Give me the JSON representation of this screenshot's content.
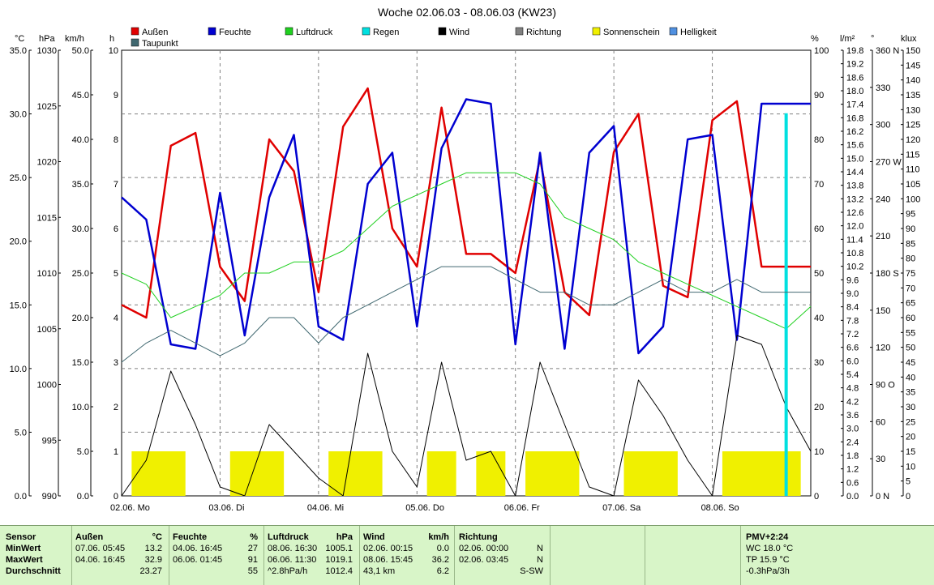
{
  "title": "Woche 02.06.03 - 08.06.03 (KW23)",
  "legend": [
    {
      "label": "Außen",
      "color": "#e00000"
    },
    {
      "label": "Feuchte",
      "color": "#0000d0"
    },
    {
      "label": "Luftdruck",
      "color": "#20d020"
    },
    {
      "label": "Regen",
      "color": "#00e0e0"
    },
    {
      "label": "Wind",
      "color": "#000000"
    },
    {
      "label": "Richtung",
      "color": "#808080"
    },
    {
      "label": "Sonnenschein",
      "color": "#f0f000"
    },
    {
      "label": "Helligkeit",
      "color": "#5090e0"
    },
    {
      "label": "Taupunkt",
      "color": "#406870"
    }
  ],
  "axis_units": {
    "temp": "°C",
    "pressure": "hPa",
    "wind": "km/h",
    "hours": "h",
    "percent": "%",
    "rain": "l/m²",
    "direction": "°",
    "lux": "klux"
  },
  "axes": {
    "temp": [
      "35.0",
      "30.0",
      "25.0",
      "20.0",
      "15.0",
      "10.0",
      "5.0",
      "0.0"
    ],
    "pressure": [
      "1030",
      "1025",
      "1020",
      "1015",
      "1010",
      "1005",
      "1000",
      "995",
      "990"
    ],
    "wind": [
      "50.0",
      "45.0",
      "40.0",
      "35.0",
      "30.0",
      "25.0",
      "20.0",
      "15.0",
      "10.0",
      "5.0",
      "0.0"
    ],
    "hours": [
      "10",
      "9",
      "8",
      "7",
      "6",
      "5",
      "4",
      "3",
      "2",
      "1",
      "0"
    ],
    "percent": [
      "100",
      "90",
      "80",
      "70",
      "60",
      "50",
      "40",
      "30",
      "20",
      "10",
      "0"
    ],
    "rain": [
      "19.8",
      "19.2",
      "18.6",
      "18.0",
      "17.4",
      "16.8",
      "16.2",
      "15.6",
      "15.0",
      "14.4",
      "13.8",
      "13.2",
      "12.6",
      "12.0",
      "11.4",
      "10.8",
      "10.2",
      "9.6",
      "9.0",
      "8.4",
      "7.8",
      "7.2",
      "6.6",
      "6.0",
      "5.4",
      "4.8",
      "4.2",
      "3.6",
      "3.0",
      "2.4",
      "1.8",
      "1.2",
      "0.6",
      "0.0"
    ],
    "direction": [
      "360 N",
      "330",
      "300",
      "270 W",
      "240",
      "210",
      "180 S",
      "150",
      "120",
      "90 O",
      "60",
      "30",
      "0 N"
    ],
    "lux": [
      "150",
      "145",
      "140",
      "135",
      "130",
      "125",
      "120",
      "115",
      "110",
      "105",
      "100",
      "95",
      "90",
      "85",
      "80",
      "75",
      "70",
      "65",
      "60",
      "55",
      "50",
      "45",
      "40",
      "35",
      "30",
      "25",
      "20",
      "15",
      "10",
      "5",
      "0"
    ]
  },
  "x_labels": [
    "02.06.  Mo",
    "03.06.  Di",
    "04.06.  Mi",
    "05.06.  Do",
    "06.06.  Fr",
    "07.06.  Sa",
    "08.06.  So"
  ],
  "chart_data": {
    "type": "line",
    "title": "Woche 02.06.03 - 08.06.03 (KW23)",
    "categories": [
      "02.06. Mo",
      "03.06. Di",
      "04.06. Mi",
      "05.06. Do",
      "06.06. Fr",
      "07.06. Sa",
      "08.06. So"
    ],
    "x": [
      0,
      0.25,
      0.5,
      0.75,
      1,
      1.25,
      1.5,
      1.75,
      2,
      2.25,
      2.5,
      2.75,
      3,
      3.25,
      3.5,
      3.75,
      4,
      4.25,
      4.5,
      4.75,
      5,
      5.25,
      5.5,
      5.75,
      6,
      6.25,
      6.5,
      6.75,
      7
    ],
    "ylim_temp": [
      0,
      35
    ],
    "ylim_pressure": [
      990,
      1030
    ],
    "series": [
      {
        "name": "Außen",
        "unit": "°C",
        "color": "#e00000",
        "values": [
          15.0,
          14.0,
          27.5,
          28.5,
          18.0,
          15.3,
          28.0,
          25.5,
          16.0,
          29.0,
          32.0,
          21.0,
          18.0,
          30.5,
          19.0,
          19.0,
          17.5,
          26.5,
          16.0,
          14.2,
          27.0,
          30.0,
          16.5,
          15.6,
          29.5,
          31.0,
          18.0,
          18.0,
          18.0
        ]
      },
      {
        "name": "Feuchte",
        "unit": "%",
        "color": "#0000d0",
        "values": [
          67,
          62,
          34,
          33,
          68,
          36,
          67,
          81,
          38,
          35,
          70,
          77,
          38,
          78,
          89,
          88,
          34,
          77,
          33,
          77,
          83,
          32,
          38,
          80,
          81,
          35,
          88,
          88,
          88
        ]
      },
      {
        "name": "Luftdruck",
        "unit": "hPa",
        "color": "#20d020",
        "values": [
          1010,
          1009,
          1006,
          1007,
          1008,
          1010,
          1010,
          1011,
          1011,
          1012,
          1014,
          1016,
          1017,
          1018,
          1019,
          1019,
          1019,
          1018,
          1015,
          1014,
          1013,
          1011,
          1010,
          1009,
          1008,
          1007,
          1006,
          1005,
          1007
        ]
      },
      {
        "name": "Wind",
        "unit": "km/h",
        "color": "#000000",
        "values": [
          0,
          4,
          14,
          8,
          1,
          0,
          8,
          5,
          2,
          0,
          16,
          5,
          1,
          15,
          4,
          5,
          0,
          15,
          8,
          1,
          0,
          13,
          9,
          4,
          0,
          18,
          17,
          10,
          5
        ]
      },
      {
        "name": "Sonnenschein",
        "unit": "h",
        "color": "#f0f000",
        "values": [
          0,
          1,
          1,
          0,
          0,
          1,
          1,
          0,
          0,
          1,
          1,
          0,
          0,
          1,
          0,
          1,
          0,
          1,
          1,
          0,
          0,
          1,
          1,
          0,
          0,
          1,
          1,
          1,
          0
        ]
      },
      {
        "name": "Regen",
        "unit": "l/m²",
        "color": "#00e0e0",
        "values": [
          0,
          0,
          0,
          0,
          0,
          0,
          0,
          0,
          0,
          0,
          0,
          0,
          0,
          0,
          0,
          0,
          0,
          0,
          0,
          0,
          0,
          0,
          0,
          0,
          0,
          0,
          0,
          17,
          0
        ]
      },
      {
        "name": "Taupunkt",
        "unit": "°C",
        "color": "#406870",
        "values": [
          10.5,
          12.0,
          13.0,
          12.0,
          11.0,
          12.0,
          14.0,
          14.0,
          12.0,
          14.0,
          15.0,
          16.0,
          17.0,
          18.0,
          18.0,
          18.0,
          17.0,
          16.0,
          16.0,
          15.0,
          15.0,
          16.0,
          17.0,
          16.0,
          16.0,
          17.0,
          16.0,
          16.0,
          16.0
        ]
      }
    ]
  },
  "stats": {
    "headers": [
      "Sensor",
      "Außen",
      "°C",
      "Feuchte",
      "%",
      "Luftdruck",
      "hPa",
      "Wind",
      "km/h",
      "Richtung"
    ],
    "row_labels": [
      "MinWert",
      "MaxWert",
      "Durchschnitt"
    ],
    "aussen": [
      [
        "07.06.  05:45",
        "13.2"
      ],
      [
        "04.06.  16:45",
        "32.9"
      ],
      [
        "",
        "23.27"
      ]
    ],
    "feuchte": [
      [
        "04.06.  16:45",
        "27"
      ],
      [
        "06.06.  01:45",
        "91"
      ],
      [
        "",
        "55"
      ]
    ],
    "luftdruck": [
      [
        "08.06.  16:30",
        "1005.1"
      ],
      [
        "06.06.  11:30",
        "1019.1"
      ],
      [
        "^2.8hPa/h",
        "1012.4"
      ]
    ],
    "wind": [
      [
        "02.06.  00:15",
        "0.0"
      ],
      [
        "08.06.  15:45",
        "36.2"
      ],
      [
        "43,1 km",
        "6.2"
      ]
    ],
    "richtung": [
      [
        "02.06.  00:00",
        "N"
      ],
      [
        "02.06.  03:45",
        "N"
      ],
      [
        "",
        "S-SW"
      ]
    ],
    "pmv": [
      "PMV+2:24",
      "WC 18.0 °C",
      "TP 15.9 °C",
      "-0.3hPa/3h"
    ]
  }
}
